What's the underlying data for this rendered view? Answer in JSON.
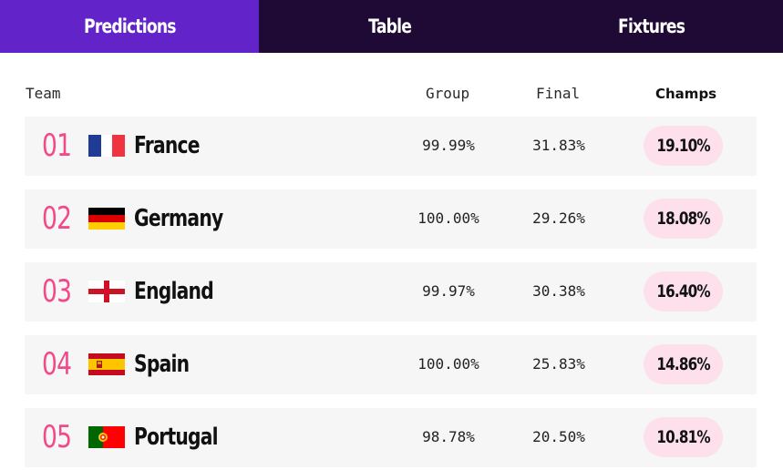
{
  "tabs": [
    {
      "label": "Predictions",
      "active": true
    },
    {
      "label": "Table",
      "active": false
    },
    {
      "label": "Fixtures",
      "active": false
    }
  ],
  "columns": {
    "team": "Team",
    "group": "Group",
    "final": "Final",
    "champs": "Champs"
  },
  "rows": [
    {
      "rank": "01",
      "team": "France",
      "flag": "france-flag-icon",
      "group": "99.99%",
      "final": "31.83%",
      "champs": "19.10%"
    },
    {
      "rank": "02",
      "team": "Germany",
      "flag": "germany-flag-icon",
      "group": "100.00%",
      "final": "29.26%",
      "champs": "18.08%"
    },
    {
      "rank": "03",
      "team": "England",
      "flag": "england-flag-icon",
      "group": "99.97%",
      "final": "30.38%",
      "champs": "16.40%"
    },
    {
      "rank": "04",
      "team": "Spain",
      "flag": "spain-flag-icon",
      "group": "100.00%",
      "final": "25.83%",
      "champs": "14.86%"
    },
    {
      "rank": "05",
      "team": "Portugal",
      "flag": "portugal-flag-icon",
      "group": "98.78%",
      "final": "20.50%",
      "champs": "10.81%"
    }
  ],
  "colors": {
    "accent": "#6224c8",
    "nav_bg": "#1e0a35",
    "rank": "#f2498a",
    "pill": "#fde0ec",
    "row_bg": "#f6f6f6"
  }
}
